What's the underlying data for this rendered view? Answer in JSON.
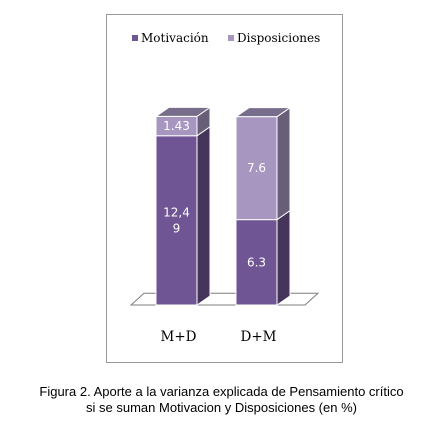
{
  "chart_data": {
    "type": "bar",
    "stacked": true,
    "three_d": true,
    "categories": [
      "M+D",
      "D+M"
    ],
    "series": [
      {
        "name": "Motivación",
        "color": "#6f5593",
        "values": [
          12.49,
          6.3
        ],
        "labels": [
          "12,4\n9",
          "6.3"
        ]
      },
      {
        "name": "Disposiciones",
        "color": "#a797c0",
        "values": [
          1.43,
          7.6
        ],
        "labels": [
          "1.43",
          "7.6"
        ]
      }
    ],
    "legend_position": "top",
    "grid": false
  },
  "caption": {
    "line1": "Figura 2. Aporte a la varianza explicada de Pensamiento crítico",
    "line2": "si se suman Motivacion y Disposiciones (en %)"
  }
}
